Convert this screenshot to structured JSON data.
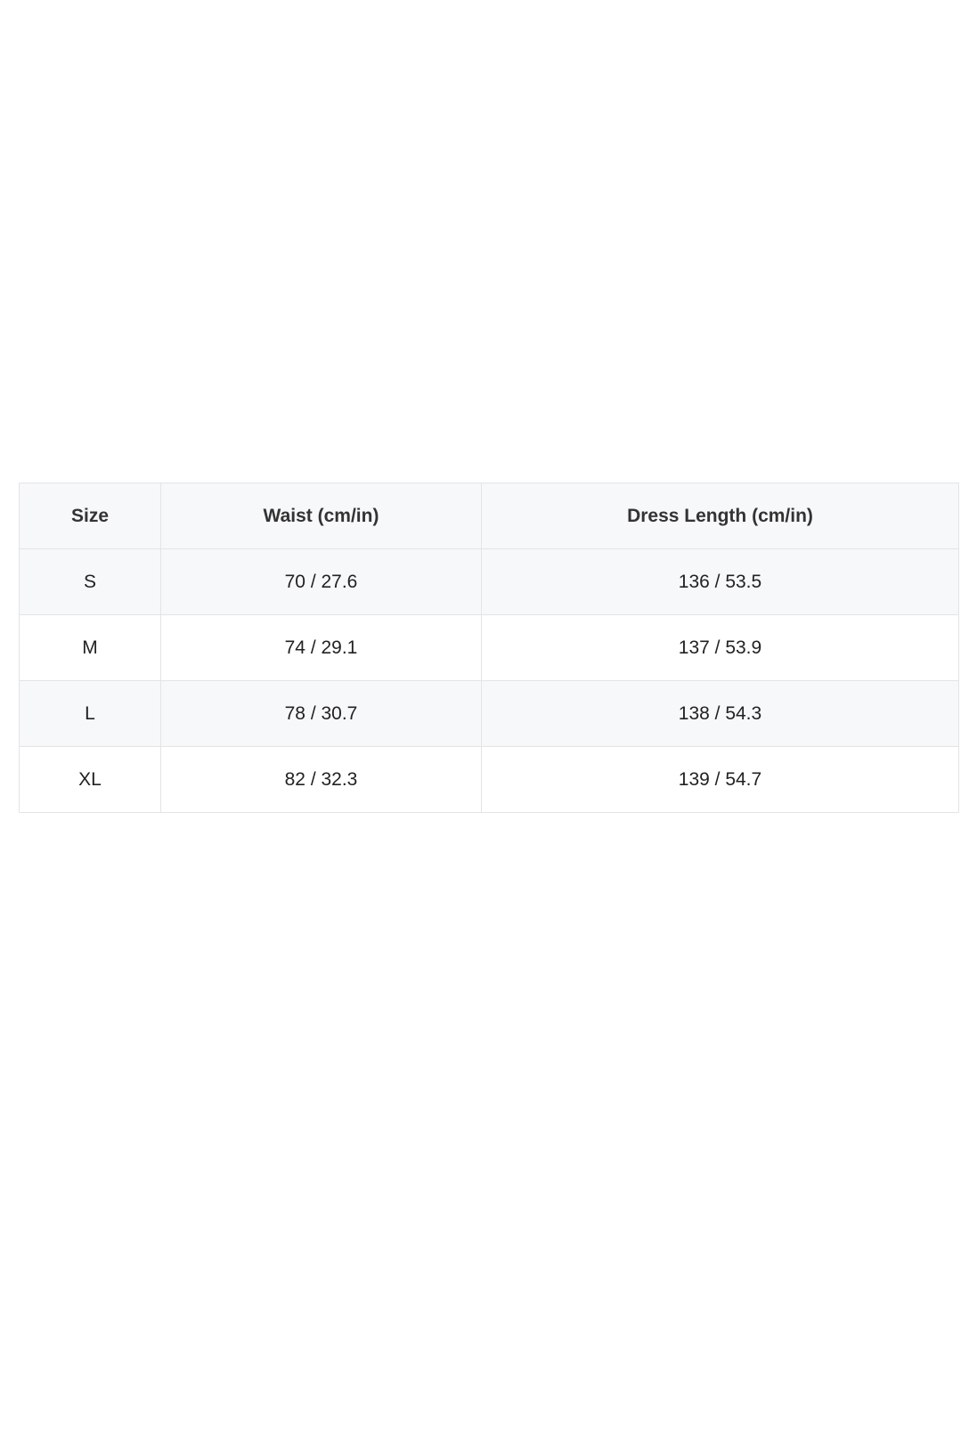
{
  "size_chart": {
    "headers": [
      "Size",
      "Waist (cm/in)",
      "Dress Length (cm/in)"
    ],
    "rows": [
      [
        "S",
        "70 / 27.6",
        "136 / 53.5"
      ],
      [
        "M",
        "74 / 29.1",
        "137 / 53.9"
      ],
      [
        "L",
        "78 / 30.7",
        "138 / 54.3"
      ],
      [
        "XL",
        "82 / 32.3",
        "139 / 54.7"
      ]
    ]
  }
}
